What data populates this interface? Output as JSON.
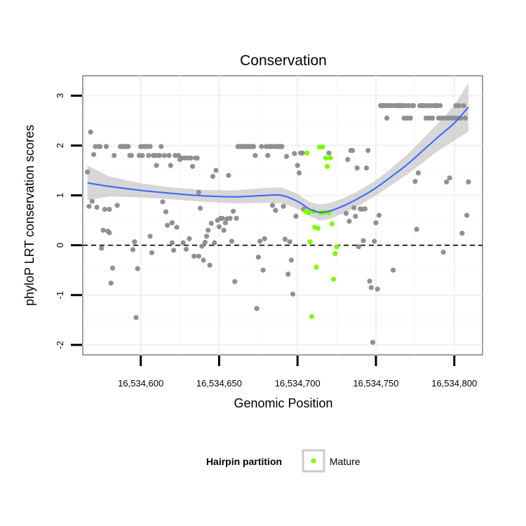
{
  "chart_data": {
    "type": "scatter",
    "title": "Conservation",
    "xlabel": "Genomic Position",
    "ylabel": "phyloP LRT conservation scores",
    "xlim": [
      16534563,
      16534818
    ],
    "ylim": [
      -2.2,
      3.4
    ],
    "x_ticks": [
      16534600,
      16534650,
      16534700,
      16534750,
      16534800
    ],
    "x_tick_labels": [
      "16,534,600",
      "16,534,650",
      "16,534,700",
      "16,534,750",
      "16,534,800"
    ],
    "y_ticks": [
      -2,
      -1,
      0,
      1,
      2,
      3
    ],
    "y_tick_labels": [
      "-2",
      "-1",
      "0",
      "1",
      "2",
      "3"
    ],
    "reference_line": {
      "y": 0,
      "style": "dashed",
      "color": "#000000"
    },
    "grid": true,
    "legend": {
      "title": "Hairpin partition",
      "position": "bottom",
      "items": [
        {
          "label": "Mature",
          "color": "#7cfc00"
        }
      ]
    },
    "colors": {
      "other": "#909090",
      "mature": "#7cfc00",
      "smooth": "#3366ff",
      "ribbon": "#cccccc"
    },
    "series": [
      {
        "group": "other",
        "points": [
          [
            16534566,
            1.47
          ],
          [
            16534567,
            0.78
          ],
          [
            16534568,
            2.27
          ],
          [
            16534569,
            0.88
          ],
          [
            16534570,
            1.82
          ],
          [
            16534571,
            1.98
          ],
          [
            16534572,
            0.76
          ],
          [
            16534573,
            1.98
          ],
          [
            16534574,
            1.98
          ],
          [
            16534575,
            -0.06
          ],
          [
            16534576,
            0.3
          ],
          [
            16534577,
            0.72
          ],
          [
            16534578,
            1.98
          ],
          [
            16534579,
            0.28
          ],
          [
            16534580,
            0.72
          ],
          [
            16534580,
            0.25
          ],
          [
            16534581,
            -0.76
          ],
          [
            16534582,
            -0.46
          ],
          [
            16534583,
            1.8
          ],
          [
            16534585,
            0.8
          ],
          [
            16534587,
            1.98
          ],
          [
            16534588,
            1.98
          ],
          [
            16534589,
            1.98
          ],
          [
            16534590,
            1.98
          ],
          [
            16534591,
            1.98
          ],
          [
            16534592,
            1.98
          ],
          [
            16534593,
            1.8
          ],
          [
            16534594,
            1.8
          ],
          [
            16534595,
            -0.09
          ],
          [
            16534596,
            0.07
          ],
          [
            16534597,
            -1.45
          ],
          [
            16534598,
            -0.47
          ],
          [
            16534599,
            1.8
          ],
          [
            16534600,
            1.98
          ],
          [
            16534601,
            1.8
          ],
          [
            16534602,
            1.98
          ],
          [
            16534603,
            1.98
          ],
          [
            16534604,
            1.98
          ],
          [
            16534605,
            1.8
          ],
          [
            16534606,
            0.18
          ],
          [
            16534606,
            1.98
          ],
          [
            16534607,
            -0.15
          ],
          [
            16534608,
            1.8
          ],
          [
            16534609,
            1.8
          ],
          [
            16534610,
            1.6
          ],
          [
            16534611,
            1.8
          ],
          [
            16534612,
            1.8
          ],
          [
            16534613,
            1.98
          ],
          [
            16534614,
            0.87
          ],
          [
            16534615,
            1.8
          ],
          [
            16534616,
            0.67
          ],
          [
            16534617,
            0.4
          ],
          [
            16534618,
            1.8
          ],
          [
            16534619,
            1.6
          ],
          [
            16534620,
            0.05
          ],
          [
            16534620,
            0.45
          ],
          [
            16534621,
            -0.1
          ],
          [
            16534622,
            1.8
          ],
          [
            16534623,
            0.36
          ],
          [
            16534624,
            1.8
          ],
          [
            16534625,
            1.72
          ],
          [
            16534626,
            1.75
          ],
          [
            16534627,
            0.05
          ],
          [
            16534628,
            1.75
          ],
          [
            16534629,
            -0.08
          ],
          [
            16534630,
            1.75
          ],
          [
            16534631,
            0.13
          ],
          [
            16534632,
            1.75
          ],
          [
            16534633,
            1.58
          ],
          [
            16534634,
            -0.22
          ],
          [
            16534635,
            1.75
          ],
          [
            16534636,
            1.75
          ],
          [
            16534637,
            -0.22
          ],
          [
            16534637,
            1.06
          ],
          [
            16534638,
            0.74
          ],
          [
            16534639,
            -0.02
          ],
          [
            16534640,
            -0.3
          ],
          [
            16534641,
            0.06
          ],
          [
            16534642,
            0.18
          ],
          [
            16534643,
            0.3
          ],
          [
            16534644,
            -0.4
          ],
          [
            16534645,
            0.44
          ],
          [
            16534646,
            1.38
          ],
          [
            16534647,
            0.05
          ],
          [
            16534648,
            1.5
          ],
          [
            16534649,
            0.5
          ],
          [
            16534650,
            0.37
          ],
          [
            16534651,
            0.54
          ],
          [
            16534652,
            0.54
          ],
          [
            16534653,
            0.3
          ],
          [
            16534654,
            0.45
          ],
          [
            16534655,
            0.53
          ],
          [
            16534656,
            1.4
          ],
          [
            16534657,
            0.54
          ],
          [
            16534658,
            0.08
          ],
          [
            16534659,
            0.68
          ],
          [
            16534660,
            -0.73
          ],
          [
            16534661,
            0.54
          ],
          [
            16534662,
            1.98
          ],
          [
            16534663,
            1.98
          ],
          [
            16534664,
            1.98
          ],
          [
            16534665,
            1.98
          ],
          [
            16534666,
            1.98
          ],
          [
            16534667,
            1.98
          ],
          [
            16534668,
            1.98
          ],
          [
            16534669,
            1.98
          ],
          [
            16534670,
            1.98
          ],
          [
            16534671,
            1.98
          ],
          [
            16534672,
            1.98
          ],
          [
            16534673,
            1.8
          ],
          [
            16534674,
            -1.27
          ],
          [
            16534675,
            -0.24
          ],
          [
            16534676,
            0.08
          ],
          [
            16534677,
            1.98
          ],
          [
            16534678,
            -0.5
          ],
          [
            16534679,
            0.13
          ],
          [
            16534680,
            1.98
          ],
          [
            16534681,
            1.8
          ],
          [
            16534682,
            1.98
          ],
          [
            16534683,
            1.98
          ],
          [
            16534684,
            0.8
          ],
          [
            16534685,
            1.98
          ],
          [
            16534686,
            0.7
          ],
          [
            16534687,
            1.98
          ],
          [
            16534688,
            1.98
          ],
          [
            16534689,
            1.98
          ],
          [
            16534690,
            1.98
          ],
          [
            16534691,
            0.78
          ],
          [
            16534692,
            0.12
          ],
          [
            16534693,
            1.78
          ],
          [
            16534694,
            -0.58
          ],
          [
            16534695,
            0.07
          ],
          [
            16534696,
            -0.3
          ],
          [
            16534697,
            -0.98
          ],
          [
            16534698,
            1.84
          ],
          [
            16534699,
            0.58
          ],
          [
            16534700,
            1.6
          ],
          [
            16534701,
            1.45
          ],
          [
            16534702,
            1.85
          ],
          [
            16534703,
            1.85
          ],
          [
            16534704,
            0.72
          ],
          [
            16534720,
            1.85
          ],
          [
            16534731,
            0.64
          ],
          [
            16534732,
            1.72
          ],
          [
            16534733,
            0.48
          ],
          [
            16534734,
            1.9
          ],
          [
            16534735,
            1.9
          ],
          [
            16534736,
            0.75
          ],
          [
            16534737,
            0.58
          ],
          [
            16534738,
            1.55
          ],
          [
            16534739,
            -0.03
          ],
          [
            16534740,
            0.73
          ],
          [
            16534741,
            0.72
          ],
          [
            16534742,
            0.09
          ],
          [
            16534743,
            0.73
          ],
          [
            16534744,
            1.55
          ],
          [
            16534745,
            1.9
          ],
          [
            16534746,
            -0.72
          ],
          [
            16534747,
            -0.85
          ],
          [
            16534748,
            -1.95
          ],
          [
            16534749,
            0.08
          ],
          [
            16534750,
            0.45
          ],
          [
            16534751,
            -0.88
          ],
          [
            16534752,
            0.6
          ],
          [
            16534753,
            2.8
          ],
          [
            16534754,
            2.8
          ],
          [
            16534755,
            2.8
          ],
          [
            16534756,
            2.8
          ],
          [
            16534757,
            2.55
          ],
          [
            16534758,
            2.8
          ],
          [
            16534759,
            2.8
          ],
          [
            16534760,
            2.8
          ],
          [
            16534761,
            -0.5
          ],
          [
            16534762,
            2.8
          ],
          [
            16534763,
            2.8
          ],
          [
            16534764,
            2.8
          ],
          [
            16534765,
            2.8
          ],
          [
            16534766,
            2.8
          ],
          [
            16534767,
            2.8
          ],
          [
            16534768,
            2.55
          ],
          [
            16534769,
            2.8
          ],
          [
            16534770,
            2.55
          ],
          [
            16534771,
            2.8
          ],
          [
            16534772,
            2.55
          ],
          [
            16534773,
            2.8
          ],
          [
            16534774,
            2.8
          ],
          [
            16534775,
            1.28
          ],
          [
            16534776,
            0.32
          ],
          [
            16534777,
            1.45
          ],
          [
            16534778,
            2.8
          ],
          [
            16534779,
            2.8
          ],
          [
            16534780,
            2.8
          ],
          [
            16534781,
            2.8
          ],
          [
            16534782,
            2.55
          ],
          [
            16534783,
            2.8
          ],
          [
            16534784,
            2.55
          ],
          [
            16534785,
            2.8
          ],
          [
            16534786,
            2.55
          ],
          [
            16534787,
            2.8
          ],
          [
            16534788,
            2.8
          ],
          [
            16534789,
            2.8
          ],
          [
            16534790,
            2.55
          ],
          [
            16534791,
            2.8
          ],
          [
            16534792,
            2.55
          ],
          [
            16534793,
            -0.14
          ],
          [
            16534794,
            2.55
          ],
          [
            16534795,
            1.27
          ],
          [
            16534796,
            2.55
          ],
          [
            16534797,
            1.35
          ],
          [
            16534798,
            2.55
          ],
          [
            16534799,
            2.55
          ],
          [
            16534800,
            2.55
          ],
          [
            16534801,
            2.8
          ],
          [
            16534802,
            2.55
          ],
          [
            16534803,
            2.8
          ],
          [
            16534804,
            2.55
          ],
          [
            16534805,
            0.24
          ],
          [
            16534806,
            2.8
          ],
          [
            16534807,
            2.55
          ],
          [
            16534808,
            0.6
          ],
          [
            16534809,
            1.27
          ]
        ]
      },
      {
        "group": "Mature",
        "points": [
          [
            16534705,
            0.68
          ],
          [
            16534706,
            1.85
          ],
          [
            16534707,
            0.65
          ],
          [
            16534708,
            0.07
          ],
          [
            16534709,
            -1.43
          ],
          [
            16534710,
            0.68
          ],
          [
            16534711,
            0.36
          ],
          [
            16534712,
            -0.44
          ],
          [
            16534713,
            0.34
          ],
          [
            16534714,
            1.97
          ],
          [
            16534715,
            0.65
          ],
          [
            16534716,
            1.97
          ],
          [
            16534717,
            0.66
          ],
          [
            16534718,
            1.75
          ],
          [
            16534719,
            1.58
          ],
          [
            16534720,
            0.65
          ],
          [
            16534721,
            1.75
          ],
          [
            16534722,
            0.43
          ],
          [
            16534723,
            -0.68
          ],
          [
            16534724,
            -0.17
          ],
          [
            16534725,
            -0.03
          ]
        ]
      }
    ],
    "smooth": {
      "x": [
        16534566,
        16534580,
        16534600,
        16534620,
        16534640,
        16534660,
        16534680,
        16534690,
        16534700,
        16534708,
        16534714,
        16534720,
        16534730,
        16534740,
        16534750,
        16534760,
        16534770,
        16534780,
        16534790,
        16534800,
        16534809
      ],
      "y": [
        1.25,
        1.18,
        1.1,
        1.04,
        0.99,
        0.97,
        1.0,
        1.0,
        0.88,
        0.72,
        0.66,
        0.68,
        0.8,
        0.96,
        1.15,
        1.38,
        1.62,
        1.9,
        2.18,
        2.45,
        2.77
      ],
      "se_upper": [
        1.6,
        1.38,
        1.24,
        1.16,
        1.11,
        1.1,
        1.15,
        1.16,
        1.03,
        0.86,
        0.82,
        0.84,
        0.95,
        1.11,
        1.3,
        1.55,
        1.82,
        2.14,
        2.46,
        2.8,
        3.26
      ],
      "se_lower": [
        0.9,
        0.98,
        0.96,
        0.92,
        0.87,
        0.84,
        0.85,
        0.84,
        0.73,
        0.58,
        0.5,
        0.52,
        0.65,
        0.81,
        1.0,
        1.21,
        1.42,
        1.66,
        1.9,
        2.1,
        2.28
      ]
    }
  }
}
